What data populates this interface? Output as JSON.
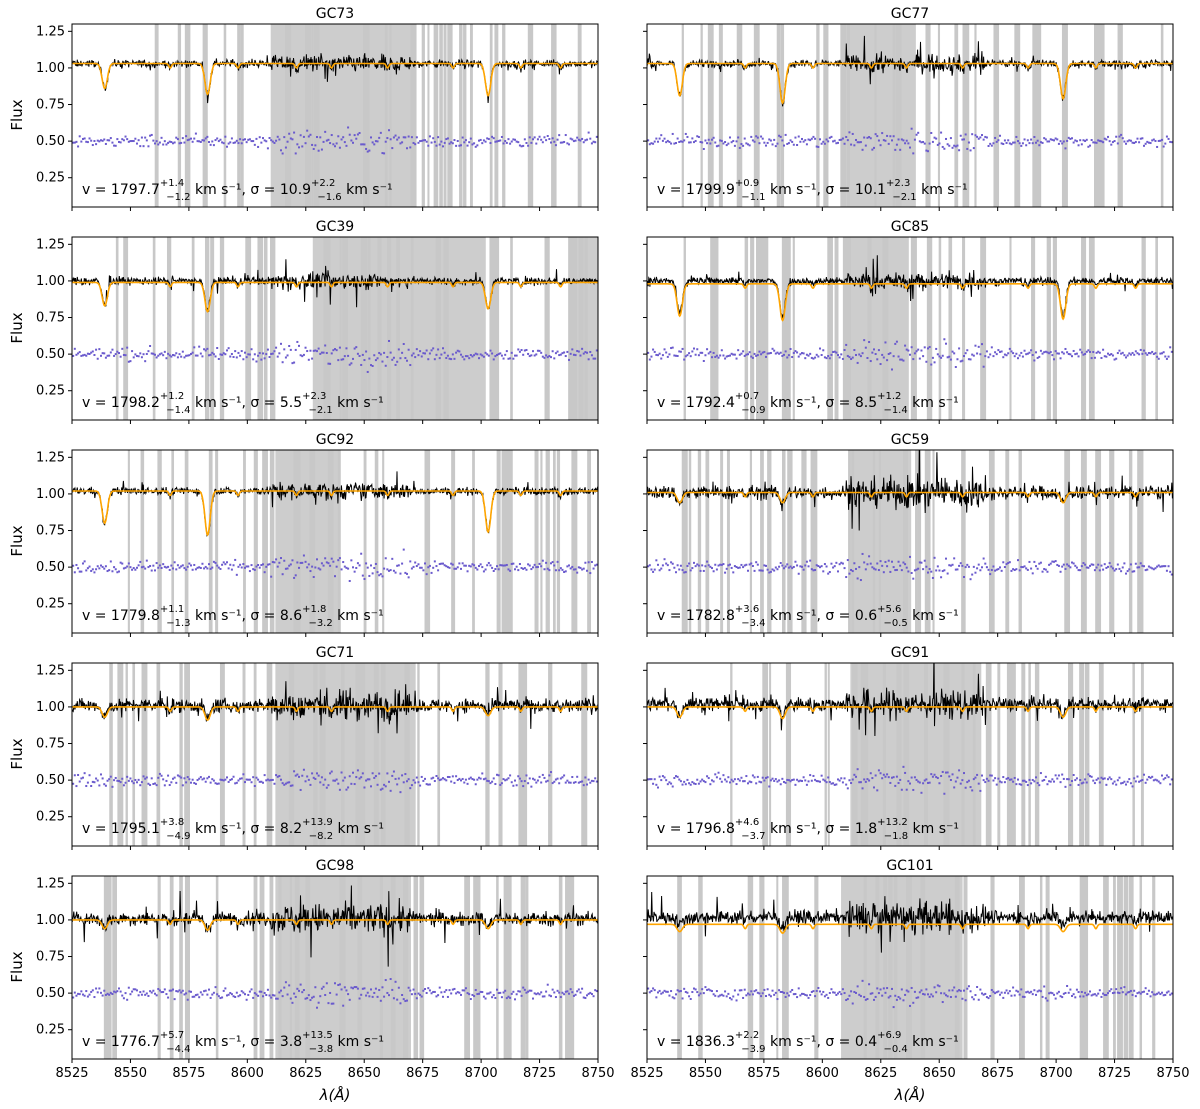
{
  "figure": {
    "xlabel": "λ(Å)",
    "ylabel": "Flux",
    "xlim": [
      8525,
      8750
    ],
    "ylim": [
      0.05,
      1.3
    ],
    "xticks": [
      8525,
      8550,
      8575,
      8600,
      8625,
      8650,
      8675,
      8700,
      8725,
      8750
    ],
    "yticks": [
      0.25,
      0.5,
      0.75,
      1.0,
      1.25
    ],
    "xtick_labels": [
      "8525",
      "8550",
      "8575",
      "8600",
      "8625",
      "8650",
      "8675",
      "8700",
      "8725",
      "8750"
    ],
    "ytick_labels": [
      "0.25",
      "0.50",
      "0.75",
      "1.00",
      "1.25"
    ],
    "colors": {
      "spectrum": "#000000",
      "model": "#ffa500",
      "residual": "#6a5acd",
      "mask": "#c8c8c8"
    }
  },
  "chart_data": [
    {
      "type": "line",
      "title": "GC73",
      "panel": "row 1, left",
      "v": "1797.7",
      "v_up": "+1.4",
      "v_dn": "−1.2",
      "sigma": "10.9",
      "sigma_up": "+2.2",
      "sigma_dn": "−1.6",
      "series": [
        {
          "name": "Observed spectrum",
          "level": 1.03
        },
        {
          "name": "Best-fit model",
          "level": 1.03,
          "line_depths": [
            0.17,
            0.21,
            0.22
          ]
        },
        {
          "name": "Residuals",
          "level": 0.5
        }
      ],
      "masked_regions": [
        [
          8610,
          8671
        ]
      ]
    },
    {
      "type": "line",
      "title": "GC77",
      "panel": "row 1, right",
      "v": "1799.9",
      "v_up": "+0.9",
      "v_dn": "−1.1",
      "sigma": "10.1",
      "sigma_up": "+2.3",
      "sigma_dn": "−2.1",
      "series": [
        {
          "name": "Observed spectrum",
          "level": 1.03
        },
        {
          "name": "Best-fit model",
          "level": 1.03,
          "line_depths": [
            0.22,
            0.27,
            0.24
          ]
        },
        {
          "name": "Residuals",
          "level": 0.5
        }
      ],
      "masked_regions": [
        [
          8608,
          8640
        ]
      ]
    },
    {
      "type": "line",
      "title": "GC39",
      "panel": "row 2, left",
      "v": "1798.2",
      "v_up": "+1.2",
      "v_dn": "−1.4",
      "sigma": "5.5",
      "sigma_up": "+2.3",
      "sigma_dn": "−2.1",
      "series": [
        {
          "name": "Observed spectrum",
          "level": 1.0
        },
        {
          "name": "Best-fit model",
          "level": 0.99,
          "line_depths": [
            0.16,
            0.2,
            0.18
          ]
        },
        {
          "name": "Residuals",
          "level": 0.5
        }
      ],
      "masked_regions": [
        [
          8628,
          8702
        ],
        [
          8738,
          8750
        ]
      ]
    },
    {
      "type": "line",
      "title": "GC85",
      "panel": "row 2, right",
      "v": "1792.4",
      "v_up": "+0.7",
      "v_dn": "−0.9",
      "sigma": "8.5",
      "sigma_up": "+1.2",
      "sigma_dn": "−1.4",
      "series": [
        {
          "name": "Observed spectrum",
          "level": 1.0
        },
        {
          "name": "Best-fit model",
          "level": 0.98,
          "line_depths": [
            0.22,
            0.25,
            0.24
          ]
        },
        {
          "name": "Residuals",
          "level": 0.5
        }
      ],
      "masked_regions": [
        [
          8609,
          8637
        ]
      ]
    },
    {
      "type": "line",
      "title": "GC92",
      "panel": "row 3, left",
      "v": "1779.8",
      "v_up": "+1.1",
      "v_dn": "−1.3",
      "sigma": "8.6",
      "sigma_up": "+1.8",
      "sigma_dn": "−3.2",
      "series": [
        {
          "name": "Observed spectrum",
          "level": 1.02
        },
        {
          "name": "Best-fit model",
          "level": 1.02,
          "line_depths": [
            0.22,
            0.3,
            0.28
          ]
        },
        {
          "name": "Residuals",
          "level": 0.5
        }
      ],
      "masked_regions": [
        [
          8612,
          8640
        ]
      ]
    },
    {
      "type": "line",
      "title": "GC59",
      "panel": "row 3, right",
      "v": "1782.8",
      "v_up": "+3.6",
      "v_dn": "−3.4",
      "sigma": "0.6",
      "sigma_up": "+5.6",
      "sigma_dn": "−0.5",
      "series": [
        {
          "name": "Observed spectrum",
          "level": 1.01
        },
        {
          "name": "Best-fit model",
          "level": 1.01,
          "line_depths": [
            0.07,
            0.07,
            0.07
          ]
        },
        {
          "name": "Residuals",
          "level": 0.5
        }
      ],
      "masked_regions": [
        [
          8612,
          8638
        ]
      ]
    },
    {
      "type": "line",
      "title": "GC71",
      "panel": "row 4, left",
      "v": "1795.1",
      "v_up": "+3.8",
      "v_dn": "−4.9",
      "sigma": "8.2",
      "sigma_up": "+13.9",
      "sigma_dn": "−8.2",
      "series": [
        {
          "name": "Observed spectrum",
          "level": 1.01
        },
        {
          "name": "Best-fit model",
          "level": 1.0,
          "line_depths": [
            0.07,
            0.09,
            0.06
          ]
        },
        {
          "name": "Residuals",
          "level": 0.5
        }
      ],
      "masked_regions": [
        [
          8612,
          8672
        ]
      ]
    },
    {
      "type": "line",
      "title": "GC91",
      "panel": "row 4, right",
      "v": "1796.8",
      "v_up": "+4.6",
      "v_dn": "−3.7",
      "sigma": "1.8",
      "sigma_up": "+13.2",
      "sigma_dn": "−1.8",
      "series": [
        {
          "name": "Observed spectrum",
          "level": 1.02
        },
        {
          "name": "Best-fit model",
          "level": 1.0,
          "line_depths": [
            0.07,
            0.08,
            0.07
          ]
        },
        {
          "name": "Residuals",
          "level": 0.5
        }
      ],
      "masked_regions": [
        [
          8612,
          8668
        ]
      ]
    },
    {
      "type": "line",
      "title": "GC98",
      "panel": "row 5, left",
      "v": "1776.7",
      "v_up": "+5.7",
      "v_dn": "−4.4",
      "sigma": "3.8",
      "sigma_up": "+13.5",
      "sigma_dn": "−3.8",
      "series": [
        {
          "name": "Observed spectrum",
          "level": 1.01
        },
        {
          "name": "Best-fit model",
          "level": 1.0,
          "line_depths": [
            0.06,
            0.07,
            0.06
          ]
        },
        {
          "name": "Residuals",
          "level": 0.5
        }
      ],
      "masked_regions": [
        [
          8612,
          8670
        ]
      ]
    },
    {
      "type": "line",
      "title": "GC101",
      "panel": "row 5, right",
      "v": "1836.3",
      "v_up": "+2.2",
      "v_dn": "−3.9",
      "sigma": "0.4",
      "sigma_up": "+6.9",
      "sigma_dn": "−0.4",
      "series": [
        {
          "name": "Observed spectrum",
          "level": 1.02
        },
        {
          "name": "Best-fit model",
          "level": 0.97,
          "line_depths": [
            0.05,
            0.06,
            0.05
          ]
        },
        {
          "name": "Residuals",
          "level": 0.5
        }
      ],
      "masked_regions": [
        [
          8608,
          8660
        ]
      ]
    }
  ]
}
